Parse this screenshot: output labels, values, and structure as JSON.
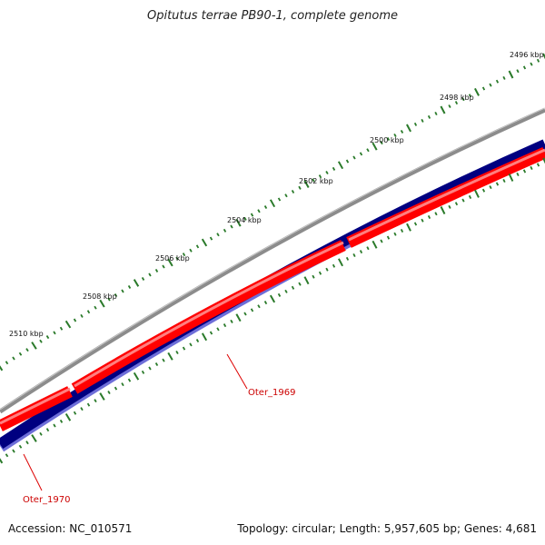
{
  "title": "Opitutus terrae PB90-1, complete genome",
  "footer": {
    "accession": "Accession: NC_010571",
    "summary": "Topology: circular; Length: 5,957,605 bp; Genes: 4,681"
  },
  "map": {
    "type": "circular-genome-map",
    "tick_labels": [
      "2496 kbp",
      "2498 kbp",
      "2500 kbp",
      "2502 kbp",
      "2504 kbp",
      "2506 kbp",
      "2508 kbp",
      "2510 kbp"
    ],
    "genes": [
      {
        "name": "Oter_1969",
        "strand": "+"
      },
      {
        "name": "Oter_1970",
        "strand": "+"
      }
    ],
    "colors": {
      "backbone": "#808080",
      "forward_cds": "#ff0000",
      "reverse_cds": "#000080",
      "reverse_edge": "#6e6ed8",
      "ticks": "#2a7a2a",
      "gene_label": "#cc0000"
    }
  }
}
